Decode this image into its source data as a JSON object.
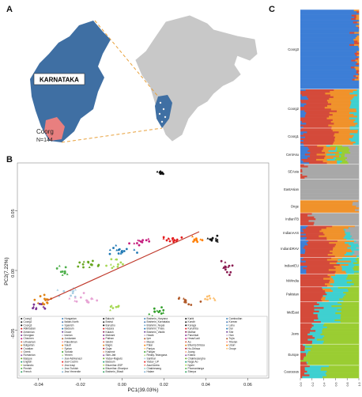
{
  "panels": {
    "a": "A",
    "b": "B",
    "c": "C"
  },
  "map": {
    "state_label": "KARNATAKA",
    "region_label": "Coorg",
    "region_n": "N=144",
    "colors": {
      "state": "#3f6fa3",
      "india": "#c8c8c8",
      "coorg": "#e87f7f",
      "leader": "#e8a03a"
    }
  },
  "pca": {
    "xlabel": "PC1(39.03%)",
    "ylabel": "PC2(7.22%)",
    "xticks": [
      "-0.04",
      "-0.02",
      "0.00",
      "0.02",
      "0.04",
      "0.06"
    ],
    "yticks": [
      "-0.05",
      "0.00",
      "0.05"
    ],
    "legend": [
      "Coorg1",
      "Coorg2",
      "Coorg3",
      "Abkhasian",
      "Armenian",
      "Georgian",
      "Chechen",
      "Lithuanian",
      "Bulgarian",
      "Croatian",
      "Greek",
      "Romanian",
      "Basque",
      "English",
      "Icelandic",
      "Finnish",
      "French",
      "Hungarian",
      "Italian-North",
      "Spanish",
      "Bedouin",
      "Druze",
      "Iranian",
      "Jordanian",
      "Palestinian",
      "Saudi",
      "Syrian",
      "Turkish",
      "Yemen",
      "Jew-Ashkenazi",
      "Jew-Cochin",
      "Jew-Iraqi",
      "Jew-Turkish",
      "Jew-Yemenite",
      "Balochi",
      "Brahui",
      "Burusho",
      "Hazara",
      "Kalash",
      "Makrani",
      "Pathan",
      "Sindhi",
      "Bagre",
      "Gujar",
      "Kashmir",
      "Sikh-Jatt",
      "Yadav-Rajputs",
      "Bedouin",
      "Bhumihar-ESP",
      "Bhumihar-Ghazipur",
      "Brahmin_Bhadi",
      "Brahmin_Haryana",
      "Brahmin_Karnataka",
      "Brahmin_Nepal",
      "Brahmin_Tharu",
      "Brahmin_Vaidik",
      "Hawik",
      "Iyer",
      "Mason",
      "Palar",
      "Paniya",
      "Pulliyar",
      "Reddy-Telangana",
      "Santhal",
      "Yadav_UP",
      "Asuri/Adria",
      "Chakhesang",
      "Halam",
      "Karbi",
      "Kondh",
      "Koraga",
      "Kurumba",
      "Malhar",
      "Panchkal",
      "Hmar/Ladi",
      "Ao",
      "Bhumij-Oriissa",
      "Ho-Oriissa",
      "Juang",
      "Kharia",
      "Chakhesangha",
      "Naga-Ao",
      "Nyshi",
      "Phomantanga",
      "Sherpa",
      "Cambodian",
      "Korean",
      "Lahu",
      "Dai",
      "She",
      "Han",
      "Tujia",
      "Tibetan",
      "Uduri",
      "Oroqe"
    ],
    "legend_colors": [
      "#111111",
      "#222222",
      "#000000",
      "#e41a1c",
      "#8a1a50",
      "#7b3294",
      "#c51b7d",
      "#d6604d",
      "#e08214",
      "#b2182b",
      "#f4a582",
      "#984ea3",
      "#66a61e",
      "#1b9e77",
      "#a6d854",
      "#4daf4a",
      "#2ca25f",
      "#377eb8",
      "#4575b4",
      "#74add1",
      "#1f78b4",
      "#6a3d9a",
      "#cab2d6",
      "#b15928",
      "#fb9a99",
      "#ff7f00",
      "#fdbf6f",
      "#33a02c",
      "#b2df8a",
      "#a6cee3",
      "#e31a1c",
      "#fb8072",
      "#8dd3c7",
      "#80b1d3"
    ],
    "colors": {
      "ancestral_cline": "#c0392b",
      "coorg": "#111111"
    },
    "chart_data": {
      "type": "scatter",
      "xlabel": "PC1(39.03%)",
      "ylabel": "PC2(7.22%)",
      "xlim": [
        -0.05,
        0.07
      ],
      "ylim": [
        -0.09,
        0.09
      ],
      "clusters": [
        {
          "cx": 0.019,
          "cy": 0.082,
          "sx": 0.002,
          "sy": 0.002,
          "n": 10,
          "color": "#111111"
        },
        {
          "cx": 0.044,
          "cy": 0.026,
          "sx": 0.003,
          "sy": 0.002,
          "n": 10,
          "color": "#111111"
        },
        {
          "cx": 0.009,
          "cy": 0.024,
          "sx": 0.004,
          "sy": 0.002,
          "n": 12,
          "color": "#c51b7d"
        },
        {
          "cx": 0.025,
          "cy": 0.026,
          "sx": 0.004,
          "sy": 0.002,
          "n": 14,
          "color": "#e41a1c"
        },
        {
          "cx": 0.036,
          "cy": 0.026,
          "sx": 0.003,
          "sy": 0.002,
          "n": 10,
          "color": "#ff7f00"
        },
        {
          "cx": 0.0,
          "cy": 0.017,
          "sx": 0.005,
          "sy": 0.003,
          "n": 16,
          "color": "#1f78b4"
        },
        {
          "cx": -0.015,
          "cy": 0.005,
          "sx": 0.005,
          "sy": 0.003,
          "n": 16,
          "color": "#66a61e"
        },
        {
          "cx": -0.003,
          "cy": 0.006,
          "sx": 0.004,
          "sy": 0.003,
          "n": 12,
          "color": "#a6d854"
        },
        {
          "cx": -0.028,
          "cy": 0.0,
          "sx": 0.004,
          "sy": 0.003,
          "n": 10,
          "color": "#4daf4a"
        },
        {
          "cx": -0.037,
          "cy": -0.025,
          "sx": 0.004,
          "sy": 0.004,
          "n": 16,
          "color": "#e08214"
        },
        {
          "cx": -0.04,
          "cy": -0.03,
          "sx": 0.003,
          "sy": 0.003,
          "n": 10,
          "color": "#7b3294"
        },
        {
          "cx": -0.025,
          "cy": -0.019,
          "sx": 0.004,
          "sy": 0.003,
          "n": 10,
          "color": "#a6cee3"
        },
        {
          "cx": -0.018,
          "cy": -0.025,
          "sx": 0.006,
          "sy": 0.005,
          "n": 14,
          "color": "#e7a3d4"
        },
        {
          "cx": -0.003,
          "cy": -0.031,
          "sx": 0.002,
          "sy": 0.002,
          "n": 8,
          "color": "#a6d854"
        },
        {
          "cx": 0.017,
          "cy": -0.035,
          "sx": 0.003,
          "sy": 0.003,
          "n": 12,
          "color": "#33a02c"
        },
        {
          "cx": 0.032,
          "cy": -0.025,
          "sx": 0.004,
          "sy": 0.003,
          "n": 12,
          "color": "#b15928"
        },
        {
          "cx": 0.043,
          "cy": -0.023,
          "sx": 0.003,
          "sy": 0.003,
          "n": 8,
          "color": "#fdbf6f"
        },
        {
          "cx": 0.05,
          "cy": 0.004,
          "sx": 0.002,
          "sy": 0.006,
          "n": 14,
          "color": "#8a1a50"
        },
        {
          "cx": 0.057,
          "cy": -0.064,
          "sx": 0.003,
          "sy": 0.008,
          "n": 16,
          "color": "#4575b4"
        },
        {
          "cx": 0.063,
          "cy": -0.082,
          "sx": 0.003,
          "sy": 0.003,
          "n": 8,
          "color": "#80b1d3"
        }
      ]
    }
  },
  "admixture": {
    "labels": [
      "Coorg3",
      "Coorg2",
      "Coorg1",
      "CentAsu",
      "SEAsia",
      "EastAsian",
      "Onge",
      "IndianTB",
      "IndianAAS",
      "IndianDRAV",
      "IndianIEU",
      "NWIndia",
      "Pakistan",
      "MidEast",
      "Jews",
      "Europe",
      "Caucasus"
    ],
    "chart_data": {
      "type": "bar",
      "orientation": "horizontal-stacked",
      "groups": [
        {
          "label": "Coorg3",
          "share": 0.188,
          "mix": [
            0.98,
            0.01,
            0.01,
            0,
            0,
            0
          ]
        },
        {
          "label": "Coorg2",
          "share": 0.092,
          "mix": [
            0.05,
            0.45,
            0.4,
            0.1,
            0,
            0
          ]
        },
        {
          "label": "Coorg1",
          "share": 0.04,
          "mix": [
            0.05,
            0.55,
            0.3,
            0.1,
            0,
            0
          ]
        },
        {
          "label": "CentAsu",
          "share": 0.045,
          "mix": [
            0.1,
            0.25,
            0.2,
            0.1,
            0.15,
            0.2
          ]
        },
        {
          "label": "SEAsia",
          "share": 0.035,
          "mix": [
            0,
            0.05,
            0,
            0,
            0,
            0.95
          ]
        },
        {
          "label": "EastAsian",
          "share": 0.05,
          "mix": [
            0,
            0,
            0,
            0,
            0,
            1
          ]
        },
        {
          "label": "Onge",
          "share": 0.03,
          "mix": [
            0,
            0,
            0.95,
            0,
            0,
            0.05
          ]
        },
        {
          "label": "IndianTB",
          "share": 0.03,
          "mix": [
            0,
            0.2,
            0,
            0,
            0,
            0.8
          ]
        },
        {
          "label": "IndianAAS",
          "share": 0.035,
          "mix": [
            0.05,
            0.35,
            0.4,
            0.05,
            0,
            0.15
          ]
        },
        {
          "label": "IndianDRAV",
          "share": 0.04,
          "mix": [
            0.05,
            0.5,
            0.3,
            0.1,
            0,
            0.05
          ]
        },
        {
          "label": "IndianIEU",
          "share": 0.04,
          "mix": [
            0.05,
            0.5,
            0.2,
            0.2,
            0.05,
            0
          ]
        },
        {
          "label": "NWIndia",
          "share": 0.03,
          "mix": [
            0,
            0.45,
            0.1,
            0.3,
            0.15,
            0
          ]
        },
        {
          "label": "Pakistan",
          "share": 0.035,
          "mix": [
            0,
            0.4,
            0.05,
            0.3,
            0.25,
            0
          ]
        },
        {
          "label": "MidEast",
          "share": 0.05,
          "mix": [
            0,
            0.3,
            0,
            0.35,
            0.35,
            0
          ]
        },
        {
          "label": "Jews",
          "share": 0.05,
          "mix": [
            0,
            0.2,
            0,
            0.2,
            0.6,
            0
          ]
        },
        {
          "label": "Europe",
          "share": 0.05,
          "mix": [
            0,
            0.05,
            0,
            0.05,
            0.9,
            0
          ]
        },
        {
          "label": "Caucasus",
          "share": 0.03,
          "mix": [
            0,
            0.1,
            0,
            0.3,
            0.6,
            0
          ]
        }
      ],
      "component_colors": [
        "#3d7ed6",
        "#d44a3a",
        "#f0922b",
        "#3fd0d0",
        "#9acd32",
        "#a8a8a8"
      ],
      "xticks": [
        "0.0",
        "0.2",
        "0.4",
        "0.6",
        "0.8",
        "1.0"
      ]
    }
  }
}
